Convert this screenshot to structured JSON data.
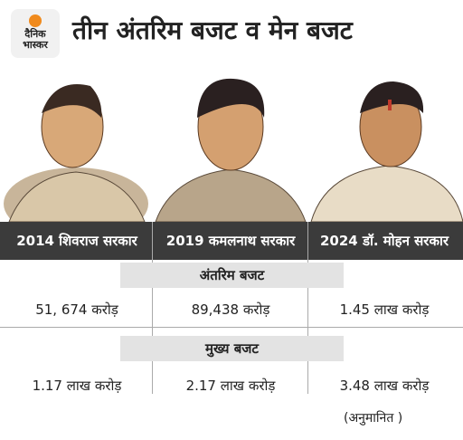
{
  "header": {
    "logo": [
      "दैनिक",
      "भास्कर"
    ],
    "title": "तीन अंतरिम बजट व मेन बजट"
  },
  "table": {
    "columns": [
      "2014 शिवराज सरकार",
      "2019 कमलनाथ सरकार",
      "2024 डॉ. मोहन सरकार"
    ],
    "sections": [
      {
        "title": "अंतरिम बजट",
        "values": [
          "51, 674 करोड़",
          "89,438 करोड़",
          "1.45 लाख करोड़"
        ]
      },
      {
        "title": "मुख्य बजट",
        "values": [
          "1.17 लाख करोड़",
          "2.17 लाख करोड़",
          "3.48 लाख करोड़"
        ]
      }
    ],
    "note": "(अनुमानित )"
  }
}
